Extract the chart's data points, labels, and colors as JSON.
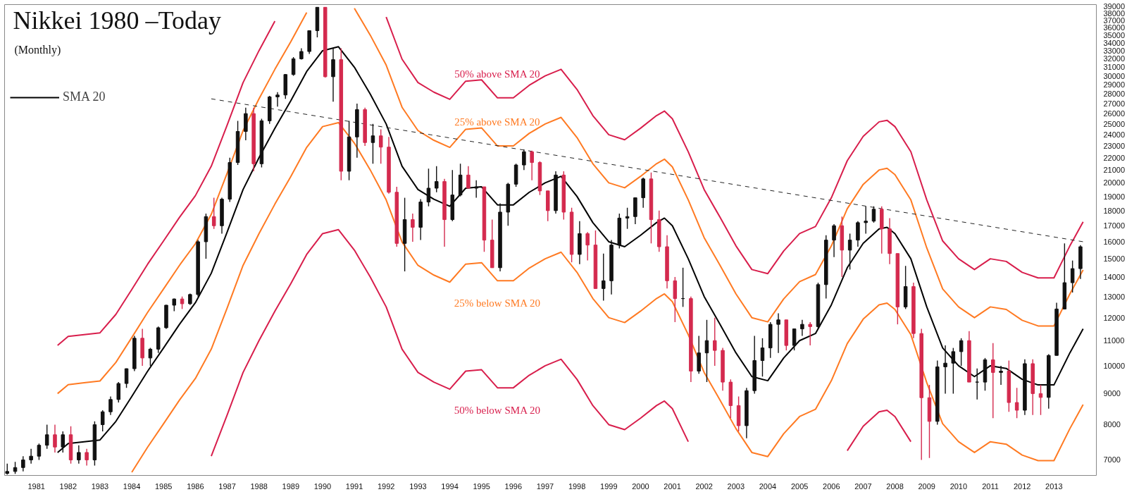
{
  "chart_data": {
    "type": "candlestick",
    "title": "Nikkei 1980 –Today",
    "subtitle": "(Monthly)",
    "log": true,
    "legend": "top left",
    "xlim": [
      "1980-01",
      "2014-05"
    ],
    "ylim": [
      6600,
      39300
    ],
    "xticks": [
      {
        "value": "1981-01",
        "label": "1981"
      },
      {
        "value": "1982-01",
        "label": "1982"
      },
      {
        "value": "1983-01",
        "label": "1983"
      },
      {
        "value": "1984-01",
        "label": "1984"
      },
      {
        "value": "1985-01",
        "label": "1985"
      },
      {
        "value": "1986-01",
        "label": "1986"
      },
      {
        "value": "1987-01",
        "label": "1987"
      },
      {
        "value": "1988-01",
        "label": "1988"
      },
      {
        "value": "1989-01",
        "label": "1989"
      },
      {
        "value": "1990-01",
        "label": "1990"
      },
      {
        "value": "1991-01",
        "label": "1991"
      },
      {
        "value": "1992-01",
        "label": "1992"
      },
      {
        "value": "1993-01",
        "label": "1993"
      },
      {
        "value": "1994-01",
        "label": "1994"
      },
      {
        "value": "1995-01",
        "label": "1995"
      },
      {
        "value": "1996-01",
        "label": "1996"
      },
      {
        "value": "1997-01",
        "label": "1997"
      },
      {
        "value": "1998-01",
        "label": "1998"
      },
      {
        "value": "1999-01",
        "label": "1999"
      },
      {
        "value": "2000-01",
        "label": "2000"
      },
      {
        "value": "2001-01",
        "label": "2001"
      },
      {
        "value": "2002-01",
        "label": "2002"
      },
      {
        "value": "2003-01",
        "label": "2003"
      },
      {
        "value": "2004-01",
        "label": "2004"
      },
      {
        "value": "2005-01",
        "label": "2005"
      },
      {
        "value": "2006-01",
        "label": "2006"
      },
      {
        "value": "2007-01",
        "label": "2007"
      },
      {
        "value": "2008-01",
        "label": "2008"
      },
      {
        "value": "2009-01",
        "label": "2009"
      },
      {
        "value": "2010-01",
        "label": "2010"
      },
      {
        "value": "2011-01",
        "label": "2011"
      },
      {
        "value": "2012-01",
        "label": "2012"
      },
      {
        "value": "2013-01",
        "label": "2013"
      }
    ],
    "yticks": [
      7000,
      8000,
      9000,
      10000,
      11000,
      12000,
      13000,
      14000,
      15000,
      16000,
      17000,
      18000,
      19000,
      20000,
      21000,
      22000,
      23000,
      24000,
      25000,
      26000,
      27000,
      28000,
      29000,
      30000,
      31000,
      32000,
      33000,
      34000,
      35000,
      36000,
      37000,
      38000,
      39000
    ],
    "x": [
      "1980-02",
      "1980-05",
      "1980-08",
      "1980-11",
      "1981-02",
      "1981-05",
      "1981-08",
      "1981-11",
      "1982-02",
      "1982-05",
      "1982-08",
      "1982-11",
      "1983-02",
      "1983-05",
      "1983-08",
      "1983-11",
      "1984-02",
      "1984-05",
      "1984-08",
      "1984-11",
      "1985-02",
      "1985-05",
      "1985-08",
      "1985-11",
      "1986-02",
      "1986-05",
      "1986-08",
      "1986-11",
      "1987-02",
      "1987-05",
      "1987-08",
      "1987-11",
      "1988-02",
      "1988-05",
      "1988-08",
      "1988-11",
      "1989-02",
      "1989-05",
      "1989-08",
      "1989-11",
      "1990-02",
      "1990-05",
      "1990-08",
      "1990-11",
      "1991-02",
      "1991-05",
      "1991-08",
      "1991-11",
      "1992-02",
      "1992-05",
      "1992-08",
      "1992-11",
      "1993-02",
      "1993-05",
      "1993-08",
      "1993-11",
      "1994-02",
      "1994-05",
      "1994-08",
      "1994-11",
      "1995-02",
      "1995-05",
      "1995-08",
      "1995-11",
      "1996-02",
      "1996-05",
      "1996-08",
      "1996-11",
      "1997-02",
      "1997-05",
      "1997-08",
      "1997-11",
      "1998-02",
      "1998-05",
      "1998-08",
      "1998-11",
      "1999-02",
      "1999-05",
      "1999-08",
      "1999-11",
      "2000-02",
      "2000-05",
      "2000-08",
      "2000-11",
      "2001-02",
      "2001-05",
      "2001-08",
      "2001-11",
      "2002-02",
      "2002-05",
      "2002-08",
      "2002-11",
      "2003-02",
      "2003-05",
      "2003-08",
      "2003-11",
      "2004-02",
      "2004-05",
      "2004-08",
      "2004-11",
      "2005-02",
      "2005-05",
      "2005-08",
      "2005-11",
      "2006-02",
      "2006-05",
      "2006-08",
      "2006-11",
      "2007-02",
      "2007-05",
      "2007-08",
      "2007-11",
      "2008-02",
      "2008-05",
      "2008-08",
      "2008-11",
      "2009-02",
      "2009-05",
      "2009-08",
      "2009-11",
      "2010-02",
      "2010-05",
      "2010-08",
      "2010-11",
      "2011-02",
      "2011-05",
      "2011-08",
      "2011-11",
      "2012-02",
      "2012-05",
      "2012-08",
      "2012-11",
      "2013-02",
      "2013-05",
      "2013-08",
      "2013-11"
    ],
    "ohlc": [
      [
        6650,
        6900,
        6620,
        6700
      ],
      [
        6700,
        6950,
        6640,
        6800
      ],
      [
        6800,
        7100,
        6700,
        7000
      ],
      [
        7000,
        7300,
        6900,
        7100
      ],
      [
        7100,
        7450,
        7000,
        7400
      ],
      [
        7400,
        8000,
        7300,
        7700
      ],
      [
        7700,
        8000,
        7200,
        7350
      ],
      [
        7350,
        7800,
        7200,
        7700
      ],
      [
        7700,
        7950,
        6900,
        7000
      ],
      [
        7000,
        7400,
        6900,
        7200
      ],
      [
        7200,
        7300,
        6850,
        7000
      ],
      [
        7000,
        8100,
        6850,
        8000
      ],
      [
        8000,
        8450,
        7800,
        8400
      ],
      [
        8400,
        8900,
        8300,
        8800
      ],
      [
        8800,
        9400,
        8700,
        9350
      ],
      [
        9350,
        9900,
        9200,
        9890
      ],
      [
        9890,
        11200,
        9800,
        11100
      ],
      [
        11100,
        11500,
        10000,
        10300
      ],
      [
        10300,
        10700,
        10000,
        10650
      ],
      [
        10650,
        11600,
        10500,
        11550
      ],
      [
        11550,
        12600,
        11500,
        12580
      ],
      [
        12580,
        12900,
        12300,
        12880
      ],
      [
        12880,
        13000,
        12400,
        12650
      ],
      [
        12650,
        13150,
        12600,
        13100
      ],
      [
        13100,
        16100,
        13000,
        16000
      ],
      [
        16000,
        17800,
        15000,
        17600
      ],
      [
        17600,
        18900,
        16800,
        17000
      ],
      [
        17000,
        18900,
        16500,
        18800
      ],
      [
        18800,
        22000,
        18600,
        21600
      ],
      [
        21600,
        25300,
        21400,
        24300
      ],
      [
        24300,
        26600,
        23500,
        26000
      ],
      [
        26000,
        26600,
        20900,
        21500
      ],
      [
        21500,
        25500,
        21200,
        25300
      ],
      [
        25300,
        27800,
        25000,
        27700
      ],
      [
        27700,
        28200,
        26700,
        27900
      ],
      [
        27900,
        30200,
        27500,
        30150
      ],
      [
        30150,
        32200,
        30000,
        32000
      ],
      [
        32000,
        33300,
        31900,
        32900
      ],
      [
        32900,
        35600,
        32600,
        35600
      ],
      [
        35600,
        38900,
        34700,
        38900
      ],
      [
        38900,
        38900,
        29800,
        29900
      ],
      [
        29900,
        33300,
        27200,
        31900
      ],
      [
        31900,
        33300,
        20200,
        20900
      ],
      [
        20900,
        25300,
        20200,
        23800
      ],
      [
        23800,
        27000,
        22000,
        26400
      ],
      [
        26400,
        26600,
        23000,
        23300
      ],
      [
        23300,
        25000,
        21500,
        23900
      ],
      [
        23900,
        24500,
        21500,
        22900
      ],
      [
        22900,
        23800,
        19200,
        19300
      ],
      [
        19300,
        19700,
        15700,
        15900
      ],
      [
        15900,
        18900,
        14300,
        17400
      ],
      [
        17400,
        17800,
        16000,
        16900
      ],
      [
        16900,
        18800,
        16100,
        18600
      ],
      [
        18600,
        21100,
        18300,
        19600
      ],
      [
        19600,
        21300,
        19300,
        20100
      ],
      [
        20100,
        20300,
        15700,
        17400
      ],
      [
        17400,
        21000,
        17300,
        19100
      ],
      [
        19100,
        21500,
        19000,
        20600
      ],
      [
        20600,
        21300,
        19600,
        19600
      ],
      [
        19600,
        20200,
        18900,
        19700
      ],
      [
        19700,
        19700,
        15400,
        16100
      ],
      [
        16100,
        17400,
        14500,
        14500
      ],
      [
        14500,
        18500,
        14300,
        17900
      ],
      [
        17900,
        20000,
        17000,
        19900
      ],
      [
        19900,
        21500,
        19700,
        21400
      ],
      [
        21400,
        22700,
        21000,
        22500
      ],
      [
        22500,
        22600,
        20200,
        21600
      ],
      [
        21600,
        21700,
        19100,
        19400
      ],
      [
        19400,
        19400,
        17300,
        18000
      ],
      [
        18000,
        20900,
        17800,
        20600
      ],
      [
        20600,
        20900,
        17400,
        17900
      ],
      [
        17900,
        18200,
        14800,
        15250
      ],
      [
        15250,
        17300,
        14700,
        16500
      ],
      [
        16500,
        16600,
        14900,
        15800
      ],
      [
        15800,
        16700,
        13400,
        13400
      ],
      [
        13400,
        15300,
        12800,
        13800
      ],
      [
        13800,
        16100,
        13100,
        15800
      ],
      [
        15800,
        17800,
        15600,
        17500
      ],
      [
        17500,
        18200,
        16800,
        17600
      ],
      [
        17600,
        18900,
        17100,
        18900
      ],
      [
        18900,
        20400,
        18200,
        20300
      ],
      [
        20300,
        20800,
        15900,
        17400
      ],
      [
        17400,
        18000,
        15400,
        15700
      ],
      [
        15700,
        16400,
        13400,
        13800
      ],
      [
        13800,
        14000,
        11800,
        12900
      ],
      [
        12900,
        14500,
        12500,
        12900
      ],
      [
        12900,
        13000,
        9400,
        9800
      ],
      [
        9800,
        11200,
        9700,
        10500
      ],
      [
        10500,
        11900,
        9400,
        11000
      ],
      [
        11000,
        12000,
        10000,
        10600
      ],
      [
        10600,
        10700,
        9100,
        9400
      ],
      [
        9400,
        9500,
        8200,
        8600
      ],
      [
        8600,
        8900,
        7800,
        7970
      ],
      [
        7970,
        9200,
        7600,
        9100
      ],
      [
        9100,
        11200,
        9000,
        10200
      ],
      [
        10200,
        11100,
        9600,
        10700
      ],
      [
        10700,
        11800,
        10300,
        11700
      ],
      [
        11700,
        12200,
        10500,
        11900
      ],
      [
        11900,
        11900,
        10600,
        10800
      ],
      [
        10800,
        11500,
        10600,
        11500
      ],
      [
        11500,
        11900,
        11200,
        11700
      ],
      [
        11700,
        11800,
        10800,
        11600
      ],
      [
        11600,
        13700,
        11500,
        13600
      ],
      [
        13600,
        16400,
        12900,
        16100
      ],
      [
        16100,
        17100,
        15100,
        17000
      ],
      [
        17000,
        17600,
        14000,
        15500
      ],
      [
        15500,
        16500,
        14400,
        16100
      ],
      [
        16100,
        17300,
        15700,
        17200
      ],
      [
        17200,
        18300,
        16500,
        17300
      ],
      [
        17300,
        18300,
        17200,
        18100
      ],
      [
        18100,
        18300,
        15300,
        16800
      ],
      [
        16800,
        17500,
        14700,
        15300
      ],
      [
        15300,
        15300,
        11700,
        12500
      ],
      [
        12500,
        14600,
        12400,
        13500
      ],
      [
        13500,
        13700,
        11100,
        11300
      ],
      [
        11300,
        11500,
        7000,
        8860
      ],
      [
        8860,
        9300,
        7050,
        8100
      ],
      [
        8100,
        10200,
        8000,
        9960
      ],
      [
        9960,
        10800,
        9000,
        10100
      ],
      [
        10100,
        10700,
        9000,
        10550
      ],
      [
        10550,
        11100,
        10000,
        11000
      ],
      [
        11000,
        11400,
        9400,
        9400
      ],
      [
        9400,
        9900,
        8800,
        9400
      ],
      [
        9400,
        10300,
        9100,
        10230
      ],
      [
        10230,
        10900,
        8200,
        9750
      ],
      [
        9750,
        10000,
        9300,
        9800
      ],
      [
        9800,
        10200,
        8400,
        8700
      ],
      [
        8700,
        9200,
        8200,
        8450
      ],
      [
        8450,
        10250,
        8300,
        10080
      ],
      [
        10080,
        10250,
        8300,
        9000
      ],
      [
        9000,
        9300,
        8300,
        8870
      ],
      [
        8870,
        10450,
        8500,
        10400
      ],
      [
        10400,
        12700,
        10400,
        12400
      ],
      [
        12400,
        15900,
        12400,
        13700
      ],
      [
        13700,
        14900,
        13200,
        14450
      ],
      [
        14450,
        15800,
        13900,
        15700
      ]
    ],
    "series": [
      {
        "type": "line",
        "name": "SMA 20",
        "color": "#000000",
        "x": [
          "1981-09",
          "1982-01",
          "1982-07",
          "1983-01",
          "1983-07",
          "1984-01",
          "1984-07",
          "1985-01",
          "1985-07",
          "1986-01",
          "1986-07",
          "1987-01",
          "1987-07",
          "1988-01",
          "1988-07",
          "1989-01",
          "1989-07",
          "1990-01",
          "1990-07",
          "1991-01",
          "1991-07",
          "1992-01",
          "1992-07",
          "1993-01",
          "1993-07",
          "1994-01",
          "1994-07",
          "1995-01",
          "1995-07",
          "1996-01",
          "1996-07",
          "1997-01",
          "1997-07",
          "1998-01",
          "1998-07",
          "1999-01",
          "1999-07",
          "2000-01",
          "2000-07",
          "2000-10",
          "2001-01",
          "2001-07",
          "2002-01",
          "2002-07",
          "2003-01",
          "2003-07",
          "2004-01",
          "2004-07",
          "2005-01",
          "2005-07",
          "2006-01",
          "2006-07",
          "2007-01",
          "2007-07",
          "2007-10",
          "2008-01",
          "2008-07",
          "2009-01",
          "2009-07",
          "2010-01",
          "2010-07",
          "2011-01",
          "2011-07",
          "2012-01",
          "2012-07",
          "2013-01",
          "2013-07",
          "2013-12"
        ],
        "values": [
          7200,
          7450,
          7500,
          7550,
          8100,
          8900,
          9800,
          10700,
          11700,
          12700,
          14200,
          16600,
          19500,
          22000,
          24600,
          27300,
          30500,
          33000,
          33500,
          31000,
          28000,
          25000,
          21300,
          19500,
          18800,
          18300,
          19600,
          19700,
          18400,
          18400,
          19300,
          20000,
          20500,
          19000,
          17200,
          16000,
          15700,
          16400,
          17200,
          17500,
          17000,
          15000,
          13000,
          11700,
          10500,
          9600,
          9450,
          10300,
          11000,
          11300,
          12600,
          14500,
          15900,
          16800,
          16900,
          16500,
          15000,
          12500,
          10700,
          10000,
          9600,
          10000,
          9900,
          9500,
          9300,
          9300,
          10500,
          11500
        ]
      },
      {
        "type": "line",
        "name": "50% above SMA 20",
        "color": "#d81e4c",
        "x": [
          "1981-09",
          "1982-01",
          "1982-07",
          "1983-01",
          "1983-07",
          "1984-01",
          "1984-07",
          "1985-01",
          "1985-07",
          "1986-01",
          "1986-07",
          "1987-01",
          "1987-07",
          "1988-01",
          "1988-07",
          "1989-01",
          "1989-07",
          "1990-01",
          "1990-07",
          "1991-01",
          "1991-07",
          "1992-01",
          "1992-07",
          "1993-01",
          "1993-07",
          "1994-01",
          "1994-07",
          "1995-01",
          "1995-07",
          "1996-01",
          "1996-07",
          "1997-01",
          "1997-07",
          "1998-01",
          "1998-07",
          "1999-01",
          "1999-07",
          "2000-01",
          "2000-07",
          "2000-10",
          "2001-01",
          "2001-07",
          "2002-01",
          "2002-07",
          "2003-01",
          "2003-07",
          "2004-01",
          "2004-07",
          "2005-01",
          "2005-07",
          "2006-01",
          "2006-07",
          "2007-01",
          "2007-07",
          "2007-10",
          "2008-01",
          "2008-07",
          "2009-01",
          "2009-07",
          "2010-01",
          "2010-07",
          "2011-01",
          "2011-07",
          "2012-01",
          "2012-07",
          "2013-01",
          "2013-07",
          "2013-12"
        ],
        "values": [
          10800,
          11180,
          11250,
          11330,
          12150,
          13350,
          14700,
          16050,
          17550,
          19050,
          21300,
          24900,
          29250,
          33000,
          36900,
          null,
          null,
          null,
          null,
          null,
          null,
          37500,
          31950,
          29250,
          28200,
          27450,
          29400,
          29550,
          27600,
          27600,
          28950,
          30000,
          30750,
          28500,
          25800,
          24000,
          23550,
          24600,
          25800,
          26250,
          25500,
          22500,
          19500,
          17550,
          15750,
          14400,
          14180,
          15450,
          16500,
          16950,
          18900,
          21750,
          23850,
          25200,
          25350,
          24750,
          22500,
          18750,
          16050,
          15000,
          14400,
          15000,
          14850,
          14250,
          13950,
          13950,
          15750,
          17250
        ]
      },
      {
        "type": "line",
        "name": "25% above SMA 20",
        "color": "#ff7a22",
        "x": [
          "1981-09",
          "1982-01",
          "1982-07",
          "1983-01",
          "1983-07",
          "1984-01",
          "1984-07",
          "1985-01",
          "1985-07",
          "1986-01",
          "1986-07",
          "1987-01",
          "1987-07",
          "1988-01",
          "1988-07",
          "1989-01",
          "1989-07",
          "1990-01",
          "1990-07",
          "1991-01",
          "1991-07",
          "1992-01",
          "1992-07",
          "1993-01",
          "1993-07",
          "1994-01",
          "1994-07",
          "1995-01",
          "1995-07",
          "1996-01",
          "1996-07",
          "1997-01",
          "1997-07",
          "1998-01",
          "1998-07",
          "1999-01",
          "1999-07",
          "2000-01",
          "2000-07",
          "2000-10",
          "2001-01",
          "2001-07",
          "2002-01",
          "2002-07",
          "2003-01",
          "2003-07",
          "2004-01",
          "2004-07",
          "2005-01",
          "2005-07",
          "2006-01",
          "2006-07",
          "2007-01",
          "2007-07",
          "2007-10",
          "2008-01",
          "2008-07",
          "2009-01",
          "2009-07",
          "2010-01",
          "2010-07",
          "2011-01",
          "2011-07",
          "2012-01",
          "2012-07",
          "2013-01",
          "2013-07",
          "2013-12"
        ],
        "values": [
          9000,
          9310,
          9380,
          9440,
          10130,
          11130,
          12250,
          13380,
          14630,
          15880,
          17750,
          20750,
          24380,
          27500,
          30750,
          34130,
          38130,
          null,
          null,
          38750,
          35000,
          31250,
          26630,
          24380,
          23500,
          22880,
          24500,
          24630,
          23000,
          23000,
          24130,
          25000,
          25630,
          23750,
          21500,
          20000,
          19630,
          20500,
          21500,
          21880,
          21250,
          18750,
          16250,
          14630,
          13130,
          12000,
          11810,
          12880,
          13750,
          14130,
          15750,
          18130,
          19880,
          21000,
          21130,
          20630,
          18750,
          15630,
          13380,
          12500,
          12000,
          12500,
          12380,
          11880,
          11630,
          11630,
          13130,
          14380
        ]
      },
      {
        "type": "line",
        "name": "25% below SMA 20",
        "color": "#ff7a22",
        "x": [
          "1984-01",
          "1984-07",
          "1985-01",
          "1985-07",
          "1986-01",
          "1986-07",
          "1987-01",
          "1987-07",
          "1988-01",
          "1988-07",
          "1989-01",
          "1989-07",
          "1990-01",
          "1990-07",
          "1991-01",
          "1991-07",
          "1992-01",
          "1992-07",
          "1993-01",
          "1993-07",
          "1994-01",
          "1994-07",
          "1995-01",
          "1995-07",
          "1996-01",
          "1996-07",
          "1997-01",
          "1997-07",
          "1998-01",
          "1998-07",
          "1999-01",
          "1999-07",
          "2000-01",
          "2000-07",
          "2000-10",
          "2001-01",
          "2001-07",
          "2002-01",
          "2002-07",
          "2003-01",
          "2003-07",
          "2004-01",
          "2004-07",
          "2005-01",
          "2005-07",
          "2006-01",
          "2006-07",
          "2007-01",
          "2007-07",
          "2007-10",
          "2008-01",
          "2008-07",
          "2009-01",
          "2009-07",
          "2010-01",
          "2010-07",
          "2011-01",
          "2011-07",
          "2012-01",
          "2012-07",
          "2013-01",
          "2013-07",
          "2013-12"
        ],
        "values": [
          6680,
          7350,
          8030,
          8780,
          9530,
          10650,
          12450,
          14630,
          16500,
          18450,
          20480,
          22880,
          24750,
          25130,
          23250,
          21000,
          18750,
          15980,
          14630,
          14100,
          13730,
          14700,
          14780,
          13800,
          13800,
          14480,
          15000,
          15380,
          14250,
          12900,
          12000,
          11780,
          12300,
          12900,
          13130,
          12750,
          11250,
          9750,
          8780,
          7880,
          7200,
          7090,
          7730,
          8250,
          8480,
          9450,
          10880,
          11930,
          12600,
          12680,
          12380,
          11250,
          9380,
          8030,
          7500,
          7200,
          7500,
          7430,
          7130,
          6980,
          6980,
          7880,
          8630
        ]
      },
      {
        "type": "line",
        "name": "50% below SMA 20",
        "color": "#d81e4c",
        "x": [
          "1986-07",
          "1987-01",
          "1987-07",
          "1988-01",
          "1988-07",
          "1989-01",
          "1989-07",
          "1990-01",
          "1990-07",
          "1991-01",
          "1991-07",
          "1992-01",
          "1992-07",
          "1993-01",
          "1993-07",
          "1994-01",
          "1994-07",
          "1995-01",
          "1995-07",
          "1996-01",
          "1996-07",
          "1997-01",
          "1997-07",
          "1998-01",
          "1998-07",
          "1999-01",
          "1999-07",
          "2000-01",
          "2000-07",
          "2000-10",
          "2001-01",
          "2001-07",
          "2002-01",
          "2002-07",
          "2003-01",
          "2003-07",
          "2004-01",
          "2004-07",
          "2005-01",
          "2005-07",
          "2006-01",
          "2006-07",
          "2007-01",
          "2007-07",
          "2007-10",
          "2008-01",
          "2008-07"
        ],
        "values": [
          7100,
          8300,
          9750,
          11000,
          12300,
          13650,
          15250,
          16500,
          16750,
          15500,
          14000,
          12500,
          10650,
          9750,
          9400,
          9150,
          9800,
          9850,
          9200,
          9200,
          9650,
          10000,
          10250,
          9500,
          8600,
          8000,
          7850,
          8200,
          8600,
          8750,
          8500,
          7500,
          null,
          null,
          null,
          null,
          null,
          null,
          null,
          null,
          null,
          7250,
          7950,
          8400,
          8450,
          8250,
          7500
        ]
      },
      {
        "type": "line",
        "color": "#222222",
        "line_style": "dashed",
        "x": [
          "1986-07",
          "2013-12"
        ],
        "values": [
          27500,
          16000
        ]
      }
    ]
  }
}
